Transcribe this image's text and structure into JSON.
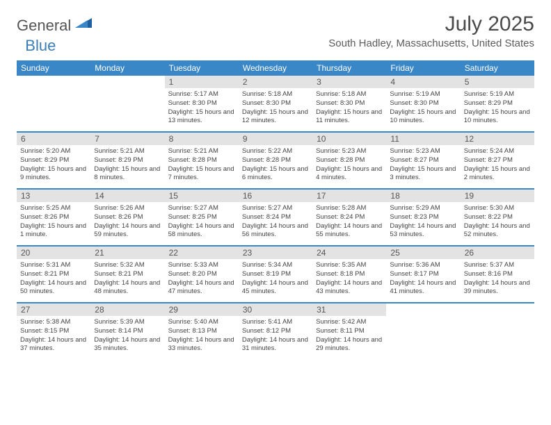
{
  "colors": {
    "header_bg": "#3a87c7",
    "daynum_bg": "#e3e3e3",
    "border": "#3a87c7",
    "text": "#444",
    "logo_gray": "#555",
    "logo_blue": "#3a7db8"
  },
  "logo": {
    "part1": "General",
    "part2": "Blue"
  },
  "title": "July 2025",
  "location": "South Hadley, Massachusetts, United States",
  "day_labels": [
    "Sunday",
    "Monday",
    "Tuesday",
    "Wednesday",
    "Thursday",
    "Friday",
    "Saturday"
  ],
  "weeks": [
    [
      {
        "blank": true
      },
      {
        "blank": true
      },
      {
        "n": "1",
        "sr": "5:17 AM",
        "ss": "8:30 PM",
        "dl": "15 hours and 13 minutes."
      },
      {
        "n": "2",
        "sr": "5:18 AM",
        "ss": "8:30 PM",
        "dl": "15 hours and 12 minutes."
      },
      {
        "n": "3",
        "sr": "5:18 AM",
        "ss": "8:30 PM",
        "dl": "15 hours and 11 minutes."
      },
      {
        "n": "4",
        "sr": "5:19 AM",
        "ss": "8:30 PM",
        "dl": "15 hours and 10 minutes."
      },
      {
        "n": "5",
        "sr": "5:19 AM",
        "ss": "8:29 PM",
        "dl": "15 hours and 10 minutes."
      }
    ],
    [
      {
        "n": "6",
        "sr": "5:20 AM",
        "ss": "8:29 PM",
        "dl": "15 hours and 9 minutes."
      },
      {
        "n": "7",
        "sr": "5:21 AM",
        "ss": "8:29 PM",
        "dl": "15 hours and 8 minutes."
      },
      {
        "n": "8",
        "sr": "5:21 AM",
        "ss": "8:28 PM",
        "dl": "15 hours and 7 minutes."
      },
      {
        "n": "9",
        "sr": "5:22 AM",
        "ss": "8:28 PM",
        "dl": "15 hours and 6 minutes."
      },
      {
        "n": "10",
        "sr": "5:23 AM",
        "ss": "8:28 PM",
        "dl": "15 hours and 4 minutes."
      },
      {
        "n": "11",
        "sr": "5:23 AM",
        "ss": "8:27 PM",
        "dl": "15 hours and 3 minutes."
      },
      {
        "n": "12",
        "sr": "5:24 AM",
        "ss": "8:27 PM",
        "dl": "15 hours and 2 minutes."
      }
    ],
    [
      {
        "n": "13",
        "sr": "5:25 AM",
        "ss": "8:26 PM",
        "dl": "15 hours and 1 minute."
      },
      {
        "n": "14",
        "sr": "5:26 AM",
        "ss": "8:26 PM",
        "dl": "14 hours and 59 minutes."
      },
      {
        "n": "15",
        "sr": "5:27 AM",
        "ss": "8:25 PM",
        "dl": "14 hours and 58 minutes."
      },
      {
        "n": "16",
        "sr": "5:27 AM",
        "ss": "8:24 PM",
        "dl": "14 hours and 56 minutes."
      },
      {
        "n": "17",
        "sr": "5:28 AM",
        "ss": "8:24 PM",
        "dl": "14 hours and 55 minutes."
      },
      {
        "n": "18",
        "sr": "5:29 AM",
        "ss": "8:23 PM",
        "dl": "14 hours and 53 minutes."
      },
      {
        "n": "19",
        "sr": "5:30 AM",
        "ss": "8:22 PM",
        "dl": "14 hours and 52 minutes."
      }
    ],
    [
      {
        "n": "20",
        "sr": "5:31 AM",
        "ss": "8:21 PM",
        "dl": "14 hours and 50 minutes."
      },
      {
        "n": "21",
        "sr": "5:32 AM",
        "ss": "8:21 PM",
        "dl": "14 hours and 48 minutes."
      },
      {
        "n": "22",
        "sr": "5:33 AM",
        "ss": "8:20 PM",
        "dl": "14 hours and 47 minutes."
      },
      {
        "n": "23",
        "sr": "5:34 AM",
        "ss": "8:19 PM",
        "dl": "14 hours and 45 minutes."
      },
      {
        "n": "24",
        "sr": "5:35 AM",
        "ss": "8:18 PM",
        "dl": "14 hours and 43 minutes."
      },
      {
        "n": "25",
        "sr": "5:36 AM",
        "ss": "8:17 PM",
        "dl": "14 hours and 41 minutes."
      },
      {
        "n": "26",
        "sr": "5:37 AM",
        "ss": "8:16 PM",
        "dl": "14 hours and 39 minutes."
      }
    ],
    [
      {
        "n": "27",
        "sr": "5:38 AM",
        "ss": "8:15 PM",
        "dl": "14 hours and 37 minutes."
      },
      {
        "n": "28",
        "sr": "5:39 AM",
        "ss": "8:14 PM",
        "dl": "14 hours and 35 minutes."
      },
      {
        "n": "29",
        "sr": "5:40 AM",
        "ss": "8:13 PM",
        "dl": "14 hours and 33 minutes."
      },
      {
        "n": "30",
        "sr": "5:41 AM",
        "ss": "8:12 PM",
        "dl": "14 hours and 31 minutes."
      },
      {
        "n": "31",
        "sr": "5:42 AM",
        "ss": "8:11 PM",
        "dl": "14 hours and 29 minutes."
      },
      {
        "blank": true
      },
      {
        "blank": true
      }
    ]
  ],
  "labels": {
    "sunrise": "Sunrise:",
    "sunset": "Sunset:",
    "daylight": "Daylight:"
  }
}
